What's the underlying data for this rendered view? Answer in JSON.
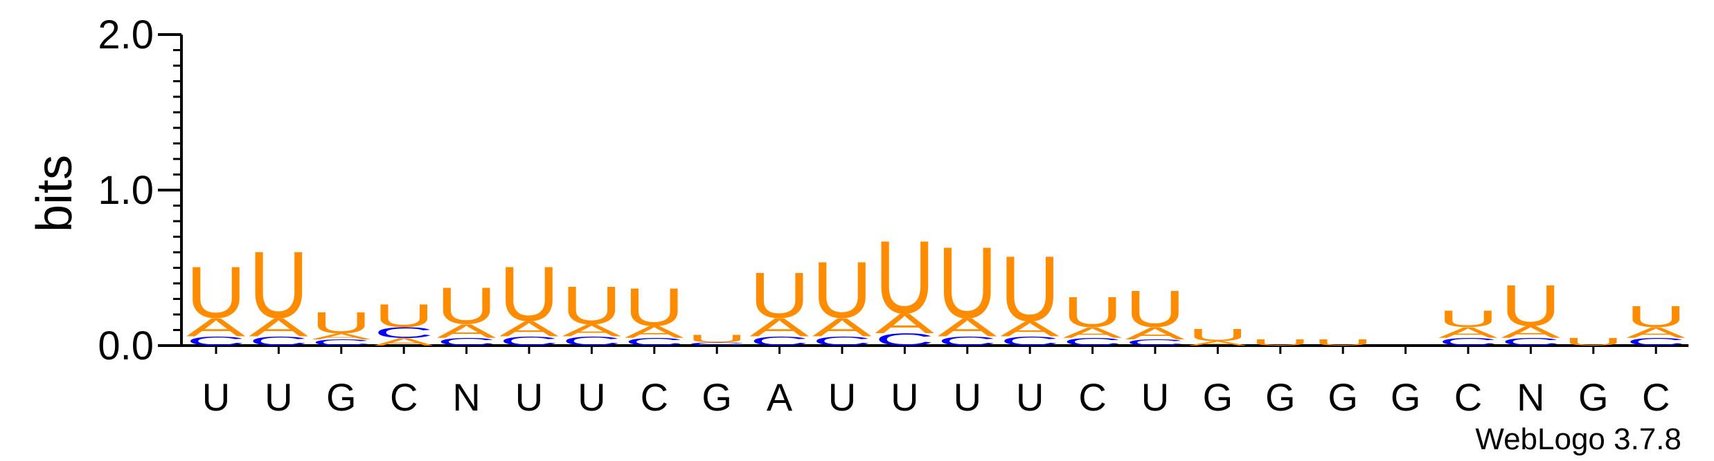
{
  "chart_data": {
    "type": "sequence-logo",
    "ylabel": "bits",
    "ylim": [
      0,
      2.0
    ],
    "yticks": [
      {
        "value": 0.0,
        "label": "0.0"
      },
      {
        "value": 1.0,
        "label": "1.0"
      },
      {
        "value": 2.0,
        "label": "2.0"
      }
    ],
    "minor_tick_step": 0.1,
    "colors": {
      "A": "#ff8c00",
      "U": "#ff8c00",
      "C": "#0000ff",
      "G": "#ff8c00"
    },
    "positions": [
      {
        "label": "U",
        "stack": [
          [
            "C",
            0.06
          ],
          [
            "A",
            0.12
          ],
          [
            "U",
            0.34
          ]
        ]
      },
      {
        "label": "U",
        "stack": [
          [
            "C",
            0.06
          ],
          [
            "A",
            0.12
          ],
          [
            "U",
            0.44
          ]
        ]
      },
      {
        "label": "G",
        "stack": [
          [
            "C",
            0.04
          ],
          [
            "A",
            0.04
          ],
          [
            "U",
            0.14
          ]
        ]
      },
      {
        "label": "C",
        "stack": [
          [
            "A",
            0.05
          ],
          [
            "C",
            0.07
          ],
          [
            "U",
            0.15
          ]
        ]
      },
      {
        "label": "N",
        "stack": [
          [
            "C",
            0.05
          ],
          [
            "A",
            0.09
          ],
          [
            "U",
            0.24
          ]
        ]
      },
      {
        "label": "U",
        "stack": [
          [
            "C",
            0.06
          ],
          [
            "A",
            0.1
          ],
          [
            "U",
            0.36
          ]
        ]
      },
      {
        "label": "U",
        "stack": [
          [
            "C",
            0.06
          ],
          [
            "A",
            0.08
          ],
          [
            "U",
            0.25
          ]
        ]
      },
      {
        "label": "C",
        "stack": [
          [
            "C",
            0.05
          ],
          [
            "A",
            0.08
          ],
          [
            "U",
            0.25
          ]
        ]
      },
      {
        "label": "G",
        "stack": [
          [
            "C",
            0.02
          ],
          [
            "U",
            0.05
          ]
        ]
      },
      {
        "label": "A",
        "stack": [
          [
            "C",
            0.06
          ],
          [
            "A",
            0.12
          ],
          [
            "U",
            0.3
          ]
        ]
      },
      {
        "label": "U",
        "stack": [
          [
            "C",
            0.06
          ],
          [
            "A",
            0.12
          ],
          [
            "U",
            0.37
          ]
        ]
      },
      {
        "label": "U",
        "stack": [
          [
            "C",
            0.08
          ],
          [
            "A",
            0.13
          ],
          [
            "U",
            0.48
          ]
        ]
      },
      {
        "label": "U",
        "stack": [
          [
            "C",
            0.06
          ],
          [
            "A",
            0.12
          ],
          [
            "U",
            0.47
          ]
        ]
      },
      {
        "label": "U",
        "stack": [
          [
            "C",
            0.06
          ],
          [
            "A",
            0.1
          ],
          [
            "U",
            0.43
          ]
        ]
      },
      {
        "label": "C",
        "stack": [
          [
            "C",
            0.05
          ],
          [
            "A",
            0.07
          ],
          [
            "U",
            0.2
          ]
        ]
      },
      {
        "label": "U",
        "stack": [
          [
            "C",
            0.04
          ],
          [
            "A",
            0.08
          ],
          [
            "U",
            0.24
          ]
        ]
      },
      {
        "label": "G",
        "stack": [
          [
            "A",
            0.03
          ],
          [
            "U",
            0.08
          ]
        ]
      },
      {
        "label": "G",
        "stack": [
          [
            "U",
            0.04
          ]
        ]
      },
      {
        "label": "G",
        "stack": [
          [
            "U",
            0.04
          ]
        ]
      },
      {
        "label": "G",
        "stack": []
      },
      {
        "label": "C",
        "stack": [
          [
            "C",
            0.05
          ],
          [
            "A",
            0.07
          ],
          [
            "U",
            0.11
          ]
        ]
      },
      {
        "label": "N",
        "stack": [
          [
            "C",
            0.05
          ],
          [
            "A",
            0.08
          ],
          [
            "U",
            0.27
          ]
        ]
      },
      {
        "label": "G",
        "stack": [
          [
            "U",
            0.05
          ]
        ]
      },
      {
        "label": "C",
        "stack": [
          [
            "C",
            0.05
          ],
          [
            "A",
            0.07
          ],
          [
            "U",
            0.14
          ]
        ]
      }
    ]
  },
  "watermark": "WebLogo 3.7.8"
}
